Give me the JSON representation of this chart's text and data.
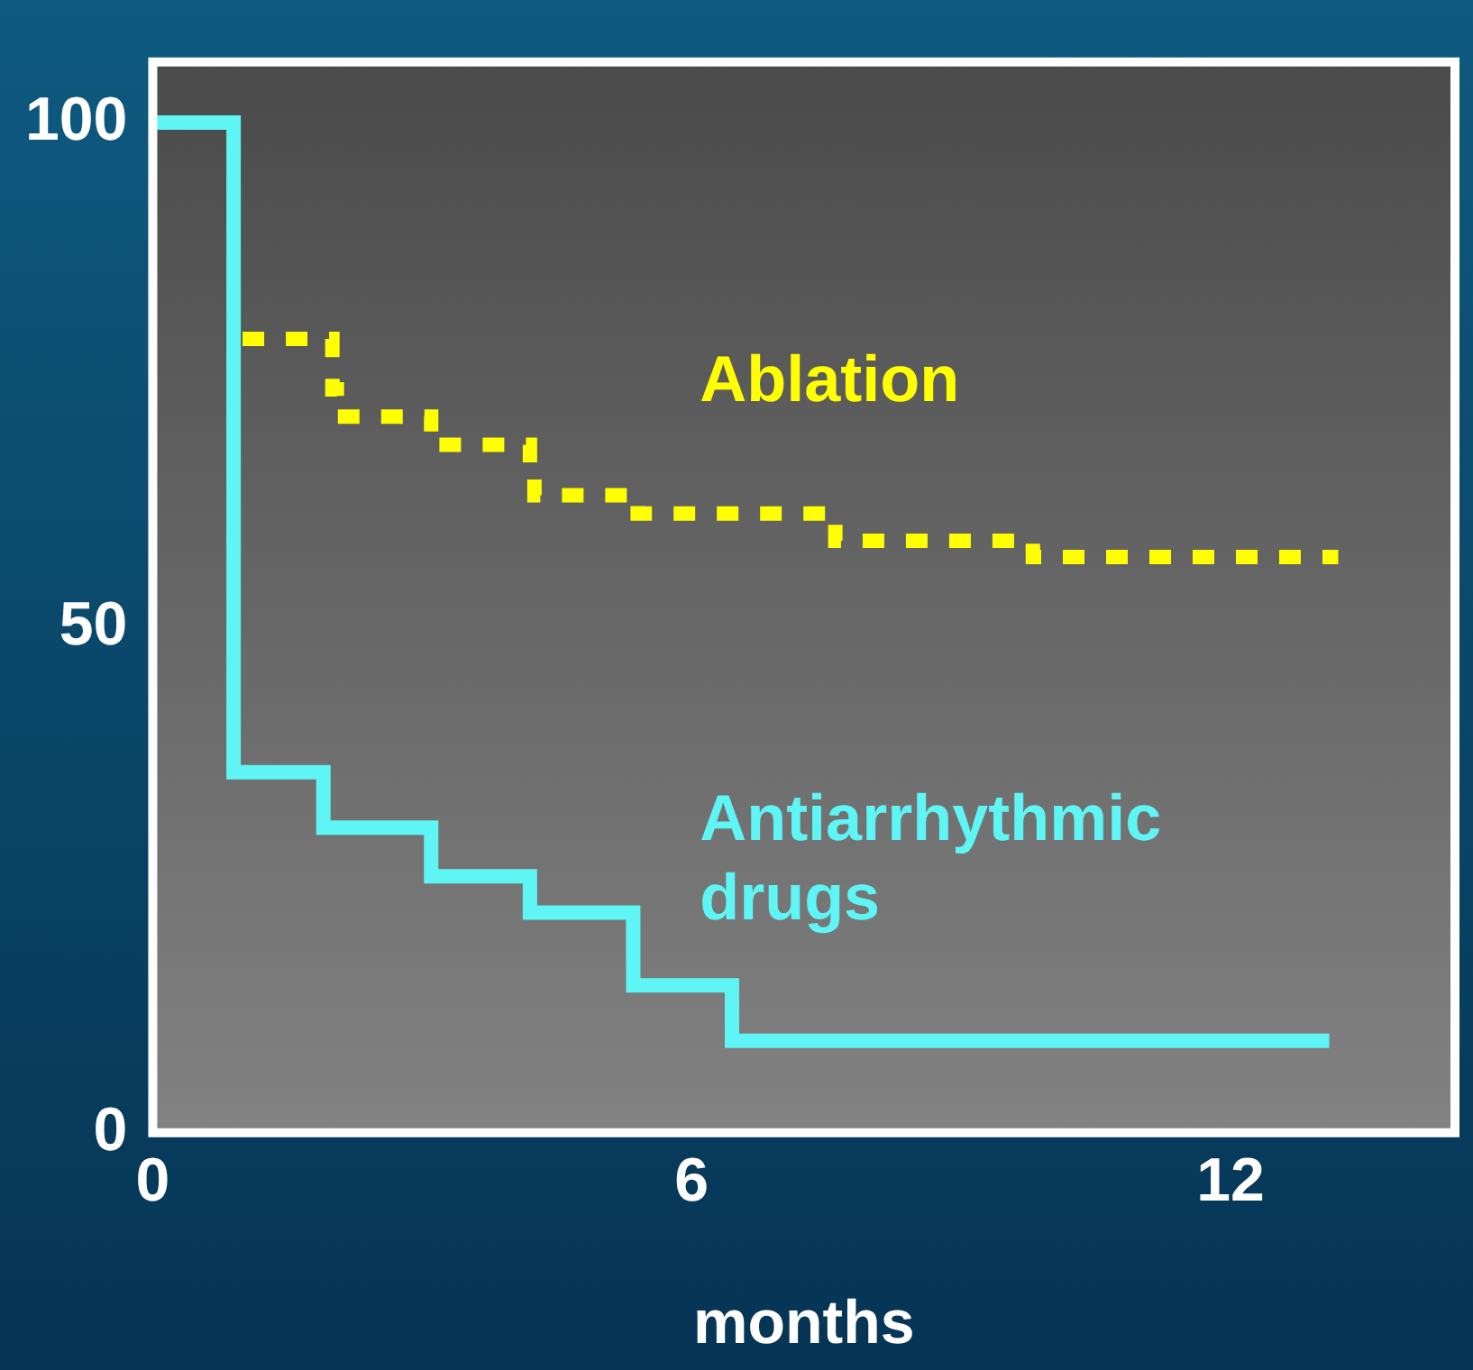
{
  "chart_data": {
    "type": "step",
    "xlabel": "months",
    "xlim": [
      0,
      14.5
    ],
    "xticks": [
      0,
      6,
      12
    ],
    "ylim": [
      0,
      106
    ],
    "yticks": [
      0,
      50,
      100
    ],
    "grid": false,
    "legend": false,
    "series": [
      {
        "name": "Ablation",
        "color": "#ffff00",
        "line_style": "dotted",
        "x": [
          1.0,
          2.0,
          2.05,
          3.1,
          4.2,
          4.25,
          5.4,
          7.6,
          9.8,
          13.2
        ],
        "values": [
          78.6,
          73.6,
          70.9,
          68.1,
          66,
          63.1,
          61.3,
          58.6,
          57.0,
          57.0
        ]
      },
      {
        "name": "Antiarrhythmic drugs",
        "color": "#5ff5f5",
        "line_style": "solid",
        "x": [
          0,
          0.9,
          1.9,
          3.1,
          4.2,
          5.35,
          6.45,
          13.1
        ],
        "values": [
          100,
          35.7,
          30.2,
          25.4,
          21.8,
          14.6,
          9.1,
          9.1
        ]
      }
    ]
  }
}
